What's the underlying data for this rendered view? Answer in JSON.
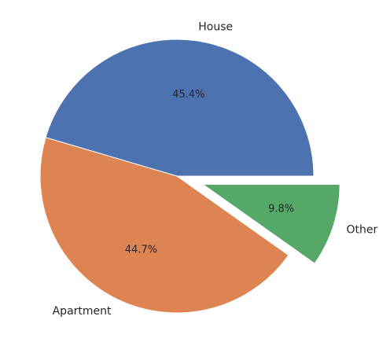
{
  "chart_data": {
    "type": "pie",
    "title": "",
    "labels": [
      "House",
      "Apartment",
      "Other"
    ],
    "values": [
      45.4,
      44.7,
      9.8
    ],
    "percent_labels": [
      "45.4%",
      "44.7%",
      "9.8%"
    ],
    "colors": [
      "#4c72b0",
      "#dd8452",
      "#55a868"
    ],
    "explode": [
      0,
      0,
      0.2
    ],
    "start_angle_deg": 0,
    "direction": "counterclockwise",
    "legend": "none"
  }
}
